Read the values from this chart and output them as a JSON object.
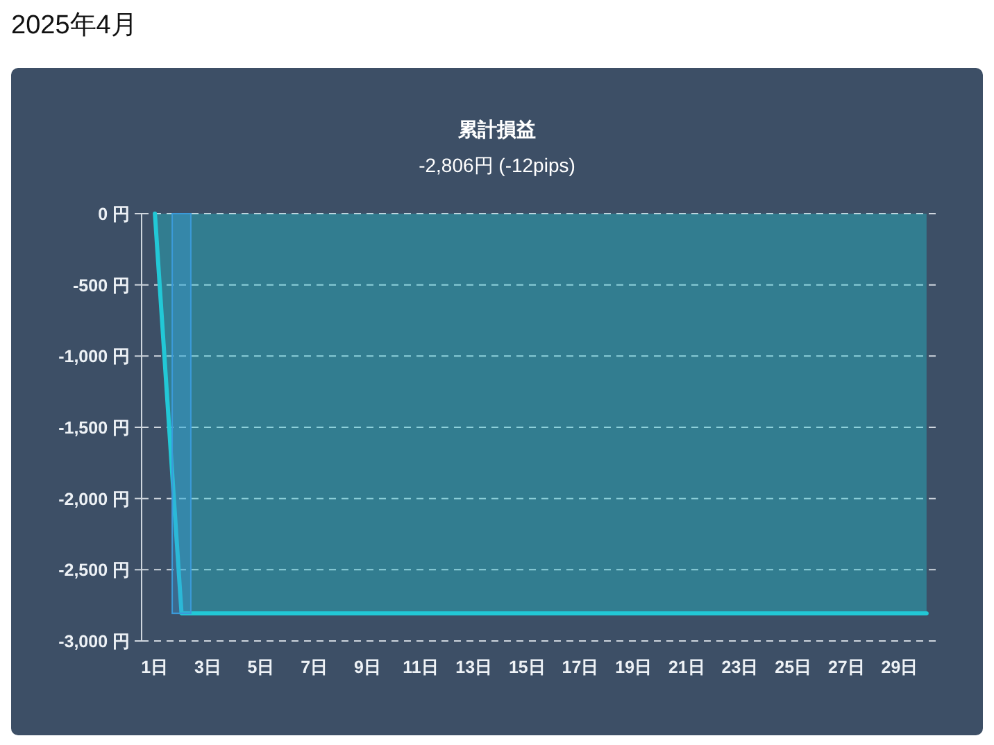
{
  "chart_data": {
    "type": "area",
    "title": "累計損益",
    "subtitle": "-2,806円 (-12pips)",
    "annotations": [
      "2025年4月"
    ],
    "categories": [
      "1日",
      null,
      "3日",
      null,
      "5日",
      null,
      "7日",
      null,
      "9日",
      null,
      "11日",
      null,
      "13日",
      null,
      "15日",
      null,
      "17日",
      null,
      "19日",
      null,
      "21日",
      null,
      "23日",
      null,
      "25日",
      null,
      "27日",
      null,
      "29日",
      null
    ],
    "series": [
      {
        "color": "#22c8d6",
        "values": [
          0,
          -2806,
          -2806,
          -2806,
          -2806,
          -2806,
          -2806,
          -2806,
          -2806,
          -2806,
          -2806,
          -2806,
          -2806,
          -2806,
          -2806,
          -2806,
          -2806,
          -2806,
          -2806,
          -2806,
          -2806,
          -2806,
          -2806,
          -2806,
          -2806,
          -2806,
          -2806,
          -2806,
          -2806,
          -2806
        ]
      },
      {
        "type": "bar",
        "color": "#3b9ad9",
        "values": [
          null,
          -2806,
          null,
          null,
          null,
          null,
          null,
          null,
          null,
          null,
          null,
          null,
          null,
          null,
          null,
          null,
          null,
          null,
          null,
          null,
          null,
          null,
          null,
          null,
          null,
          null,
          null,
          null,
          null,
          null
        ]
      }
    ],
    "ylim": [
      -3000,
      0
    ],
    "yticks": [
      {
        "value": 0,
        "label": "0 円"
      },
      {
        "value": -500,
        "label": "-500 円"
      },
      {
        "value": -1000,
        "label": "-1,000 円"
      },
      {
        "value": -1500,
        "label": "-1,500 円"
      },
      {
        "value": -2000,
        "label": "-2,000 円"
      },
      {
        "value": -2500,
        "label": "-2,500 円"
      },
      {
        "value": -3000,
        "label": "-3,000 円"
      }
    ],
    "grid": "y",
    "marker": "none",
    "line_style": "solid"
  }
}
